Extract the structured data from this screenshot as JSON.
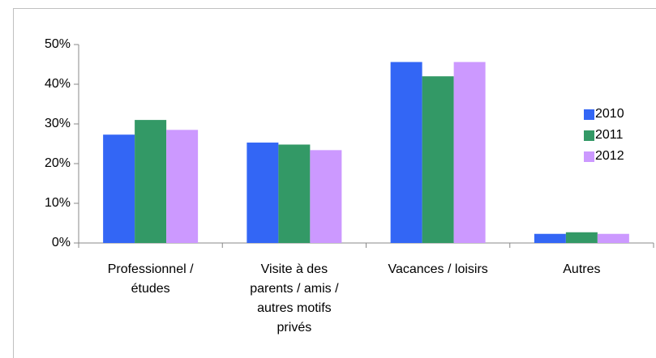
{
  "chart_data": {
    "type": "bar",
    "categories": [
      "Professionnel /\nétudes",
      "Visite à des\nparents / amis /\nautres motifs\nprivés",
      "Vacances / loisirs",
      "Autres"
    ],
    "series": [
      {
        "name": "2010",
        "color": "#3366f5",
        "values": [
          27.3,
          25.3,
          45.6,
          2.3
        ]
      },
      {
        "name": "2011",
        "color": "#339966",
        "values": [
          31,
          24.8,
          42,
          2.7
        ]
      },
      {
        "name": "2012",
        "color": "#cc99ff",
        "values": [
          28.5,
          23.4,
          45.6,
          2.3
        ]
      }
    ],
    "ylim": [
      0,
      50
    ],
    "yticks": [
      {
        "value": 0,
        "label": "0%"
      },
      {
        "value": 10,
        "label": "10%"
      },
      {
        "value": 20,
        "label": "20%"
      },
      {
        "value": 30,
        "label": "30%"
      },
      {
        "value": 40,
        "label": "40%"
      },
      {
        "value": 50,
        "label": "50%"
      }
    ],
    "legend": "right"
  }
}
